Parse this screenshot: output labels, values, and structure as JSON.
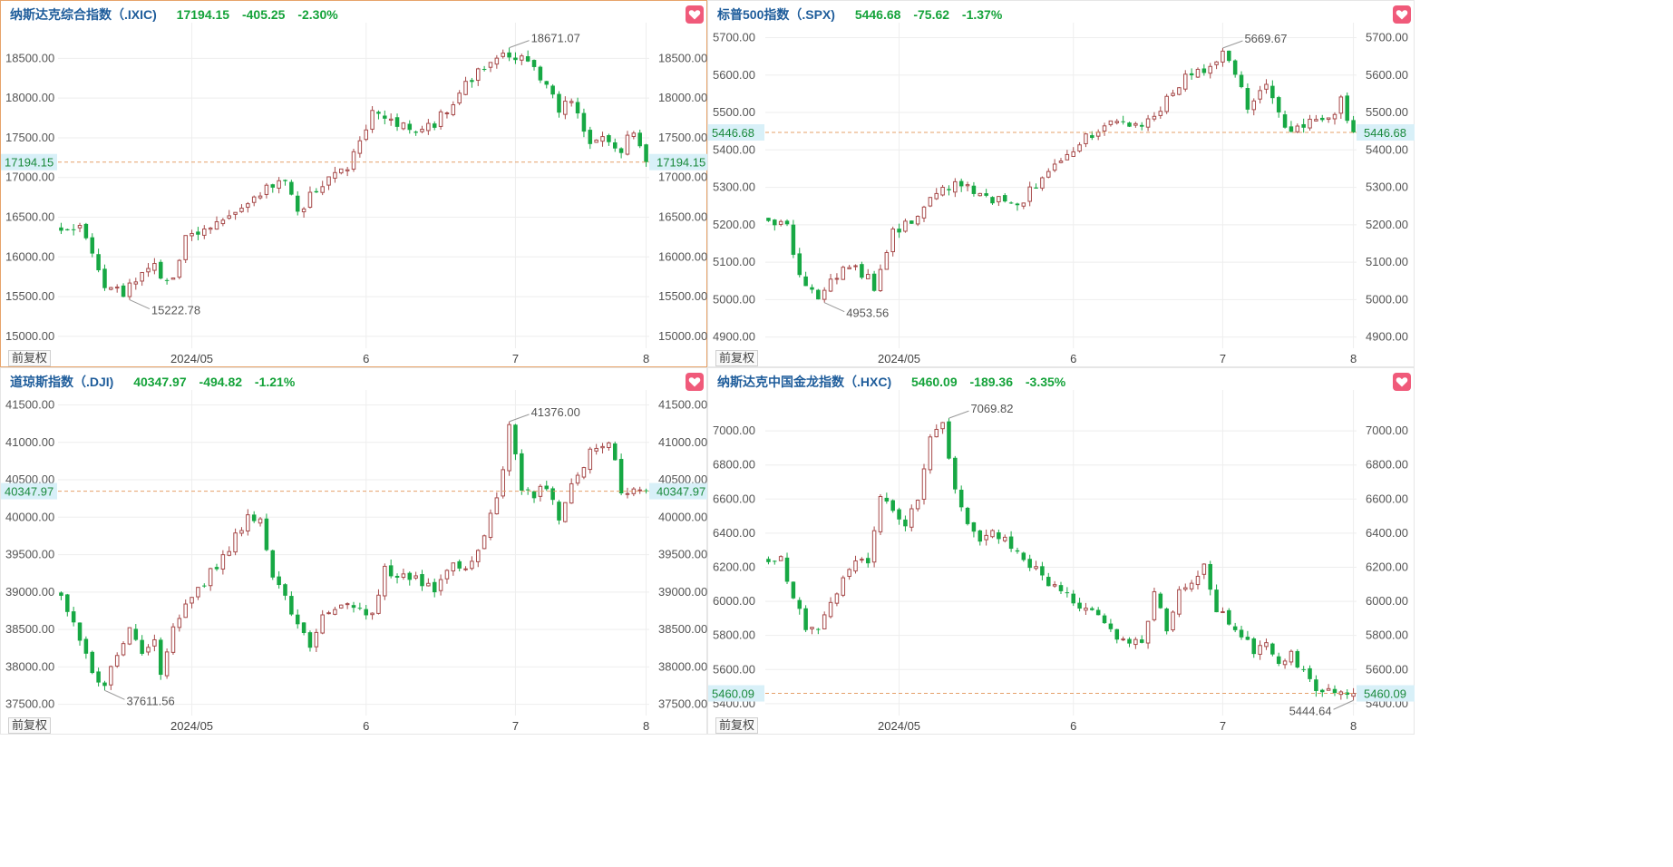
{
  "colors": {
    "up": "#a74a4a",
    "down": "#17a844",
    "accent": "#e5a06a",
    "cur_bg": "#d8f0f8"
  },
  "adjust_label": "前复权",
  "fav_icon": "heart-icon",
  "panels": [
    {
      "name": "纳斯达克综合指数（.IXIC)",
      "price": "17194.15",
      "change": "-405.25",
      "pct": "-2.30%",
      "chart_data": {
        "type": "candlestick",
        "yticks": [
          "15000.00",
          "15500.00",
          "16000.00",
          "16500.00",
          "17000.00",
          "17500.00",
          "18000.00",
          "18500.00"
        ],
        "ylim": [
          14850,
          18950
        ],
        "current": 17194.15,
        "current_label": "17194.15",
        "high_label": "18671.07",
        "low_label": "15222.78",
        "xlabels": [
          "2024/05",
          "6",
          "7",
          "8"
        ],
        "anchors": [
          [
            0,
            16330
          ],
          [
            3,
            16430
          ],
          [
            5,
            16100
          ],
          [
            7,
            15650
          ],
          [
            10,
            15540
          ],
          [
            13,
            15820
          ],
          [
            15,
            15960
          ],
          [
            16,
            15700
          ],
          [
            18,
            15700
          ],
          [
            20,
            16250
          ],
          [
            24,
            16400
          ],
          [
            30,
            16730
          ],
          [
            36,
            17000
          ],
          [
            38,
            16520
          ],
          [
            40,
            16780
          ],
          [
            42,
            16900
          ],
          [
            46,
            17150
          ],
          [
            50,
            17800
          ],
          [
            56,
            17600
          ],
          [
            60,
            17680
          ],
          [
            66,
            18250
          ],
          [
            68,
            18420
          ],
          [
            71,
            18600
          ],
          [
            72,
            18470
          ],
          [
            75,
            18500
          ],
          [
            76,
            18350
          ],
          [
            78,
            18200
          ],
          [
            80,
            17850
          ],
          [
            82,
            18000
          ],
          [
            85,
            17380
          ],
          [
            88,
            17500
          ],
          [
            90,
            17350
          ],
          [
            92,
            17600
          ],
          [
            94,
            17200
          ]
        ]
      }
    },
    {
      "name": "标普500指数（.SPX)",
      "price": "5446.68",
      "change": "-75.62",
      "pct": "-1.37%",
      "chart_data": {
        "type": "candlestick",
        "yticks": [
          "4900.00",
          "5000.00",
          "5100.00",
          "5200.00",
          "5300.00",
          "5400.00",
          "5500.00",
          "5600.00",
          "5700.00"
        ],
        "ylim": [
          4870,
          5740
        ],
        "current": 5446.68,
        "current_label": "5446.68",
        "high_label": "5669.67",
        "low_label": "4953.56",
        "xlabels": [
          "2024/05",
          "6",
          "7",
          "8"
        ],
        "anchors": [
          [
            0,
            5210
          ],
          [
            3,
            5190
          ],
          [
            5,
            5070
          ],
          [
            8,
            5000
          ],
          [
            10,
            5050
          ],
          [
            13,
            5090
          ],
          [
            16,
            5060
          ],
          [
            17,
            5020
          ],
          [
            20,
            5180
          ],
          [
            24,
            5220
          ],
          [
            28,
            5300
          ],
          [
            32,
            5310
          ],
          [
            34,
            5280
          ],
          [
            38,
            5260
          ],
          [
            40,
            5240
          ],
          [
            42,
            5290
          ],
          [
            46,
            5350
          ],
          [
            50,
            5420
          ],
          [
            56,
            5480
          ],
          [
            60,
            5460
          ],
          [
            66,
            5570
          ],
          [
            68,
            5610
          ],
          [
            71,
            5620
          ],
          [
            73,
            5660
          ],
          [
            75,
            5590
          ],
          [
            77,
            5520
          ],
          [
            80,
            5570
          ],
          [
            82,
            5500
          ],
          [
            84,
            5440
          ],
          [
            87,
            5480
          ],
          [
            90,
            5480
          ],
          [
            92,
            5530
          ],
          [
            94,
            5450
          ]
        ]
      }
    },
    {
      "name": "道琼斯指数（.DJI)",
      "price": "40347.97",
      "change": "-494.82",
      "pct": "-1.21%",
      "chart_data": {
        "type": "candlestick",
        "yticks": [
          "37500.00",
          "38000.00",
          "38500.00",
          "39000.00",
          "39500.00",
          "40000.00",
          "40500.00",
          "41000.00",
          "41500.00"
        ],
        "ylim": [
          37350,
          41700
        ],
        "current": 40347.97,
        "current_label": "40347.97",
        "high_label": "41376.00",
        "low_label": "37611.56",
        "xlabels": [
          "2024/05",
          "6",
          "7",
          "8"
        ],
        "anchors": [
          [
            0,
            38950
          ],
          [
            2,
            38550
          ],
          [
            5,
            37900
          ],
          [
            7,
            37800
          ],
          [
            9,
            38200
          ],
          [
            11,
            38500
          ],
          [
            13,
            38200
          ],
          [
            15,
            38300
          ],
          [
            16,
            37850
          ],
          [
            18,
            38500
          ],
          [
            22,
            39050
          ],
          [
            26,
            39450
          ],
          [
            30,
            40000
          ],
          [
            32,
            39950
          ],
          [
            34,
            39250
          ],
          [
            36,
            38900
          ],
          [
            40,
            38300
          ],
          [
            42,
            38700
          ],
          [
            46,
            38800
          ],
          [
            50,
            38700
          ],
          [
            52,
            39300
          ],
          [
            56,
            39200
          ],
          [
            60,
            39050
          ],
          [
            62,
            39300
          ],
          [
            66,
            39400
          ],
          [
            68,
            39800
          ],
          [
            70,
            40200
          ],
          [
            72,
            41200
          ],
          [
            74,
            40400
          ],
          [
            76,
            40300
          ],
          [
            78,
            40400
          ],
          [
            80,
            40000
          ],
          [
            82,
            40400
          ],
          [
            85,
            40850
          ],
          [
            88,
            41050
          ],
          [
            90,
            40350
          ]
        ]
      }
    },
    {
      "name": "纳斯达克中国金龙指数（.HXC)",
      "price": "5460.09",
      "change": "-189.36",
      "pct": "-3.35%",
      "chart_data": {
        "type": "candlestick",
        "yticks": [
          "5400.00",
          "5600.00",
          "5800.00",
          "6000.00",
          "6200.00",
          "6400.00",
          "6600.00",
          "6800.00",
          "7000.00"
        ],
        "ylim": [
          5330,
          7240
        ],
        "current": 5460.09,
        "current_label": "5460.09",
        "high_label": "7069.82",
        "low_label": "5444.64",
        "xlabels": [
          "2024/05",
          "6",
          "7",
          "8"
        ],
        "anchors": [
          [
            0,
            6230
          ],
          [
            2,
            6250
          ],
          [
            4,
            6000
          ],
          [
            6,
            5860
          ],
          [
            8,
            5830
          ],
          [
            10,
            5980
          ],
          [
            12,
            6150
          ],
          [
            14,
            6250
          ],
          [
            16,
            6200
          ],
          [
            18,
            6600
          ],
          [
            20,
            6550
          ],
          [
            22,
            6450
          ],
          [
            24,
            6600
          ],
          [
            26,
            6950
          ],
          [
            28,
            7050
          ],
          [
            30,
            6650
          ],
          [
            32,
            6480
          ],
          [
            34,
            6350
          ],
          [
            36,
            6400
          ],
          [
            40,
            6300
          ],
          [
            44,
            6150
          ],
          [
            48,
            6020
          ],
          [
            52,
            5950
          ],
          [
            56,
            5800
          ],
          [
            60,
            5750
          ],
          [
            62,
            6050
          ],
          [
            64,
            5820
          ],
          [
            66,
            6050
          ],
          [
            70,
            6200
          ],
          [
            72,
            5950
          ],
          [
            76,
            5800
          ],
          [
            78,
            5700
          ],
          [
            80,
            5750
          ],
          [
            82,
            5650
          ],
          [
            84,
            5700
          ],
          [
            86,
            5580
          ],
          [
            88,
            5470
          ]
        ]
      }
    }
  ]
}
